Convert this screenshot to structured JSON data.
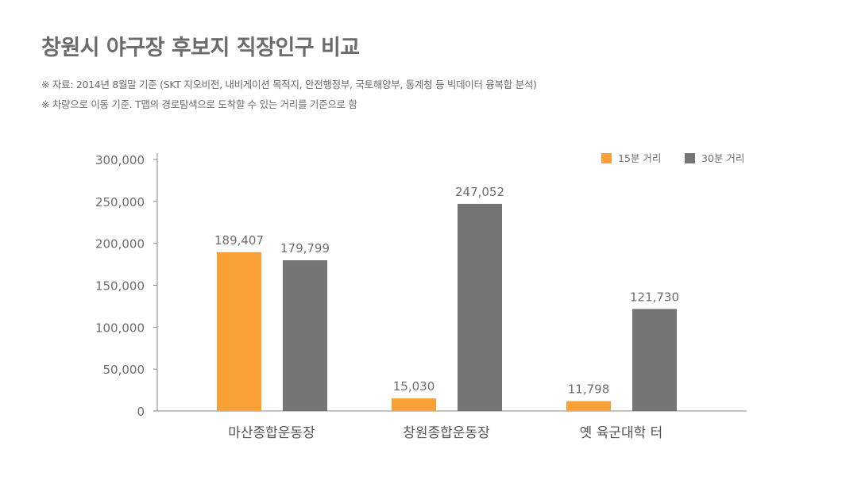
{
  "title": "창원시 야구장 후보지 직장인구 비교",
  "notes": [
    "※ 자료: 2014년 8월말 기준 (SKT 지오비전, 내비게이션 목적지, 안전행정부, 국토해양부, 통계청 등 빅데이터 융복합 분석)",
    "※ 차량으로 이동 기준. T맵의 경로탐색으로 도착할 수 있는 거리를 기준으로 함"
  ],
  "chart_data": {
    "type": "bar",
    "title": "창원시 야구장 후보지 직장인구 비교",
    "categories": [
      "마산종합운동장",
      "창원종합운동장",
      "옛 육군대학 터"
    ],
    "series": [
      {
        "name": "15분 거리",
        "color": "#f9a137",
        "values": [
          189407,
          15030,
          11798
        ],
        "labels": [
          "189,407",
          "15,030",
          "11,798"
        ]
      },
      {
        "name": "30분 거리",
        "color": "#757575",
        "values": [
          179799,
          247052,
          121730
        ],
        "labels": [
          "179,799",
          "247,052",
          "121,730"
        ]
      }
    ],
    "ylim": [
      0,
      300000
    ],
    "yticks": [
      0,
      50000,
      100000,
      150000,
      200000,
      250000,
      300000
    ],
    "ytick_labels": [
      "0",
      "50,000",
      "100,000",
      "150,000",
      "200,000",
      "250,000",
      "300,000"
    ],
    "xlabel": "",
    "ylabel": "",
    "grid": false,
    "legend_position": "top-right"
  }
}
